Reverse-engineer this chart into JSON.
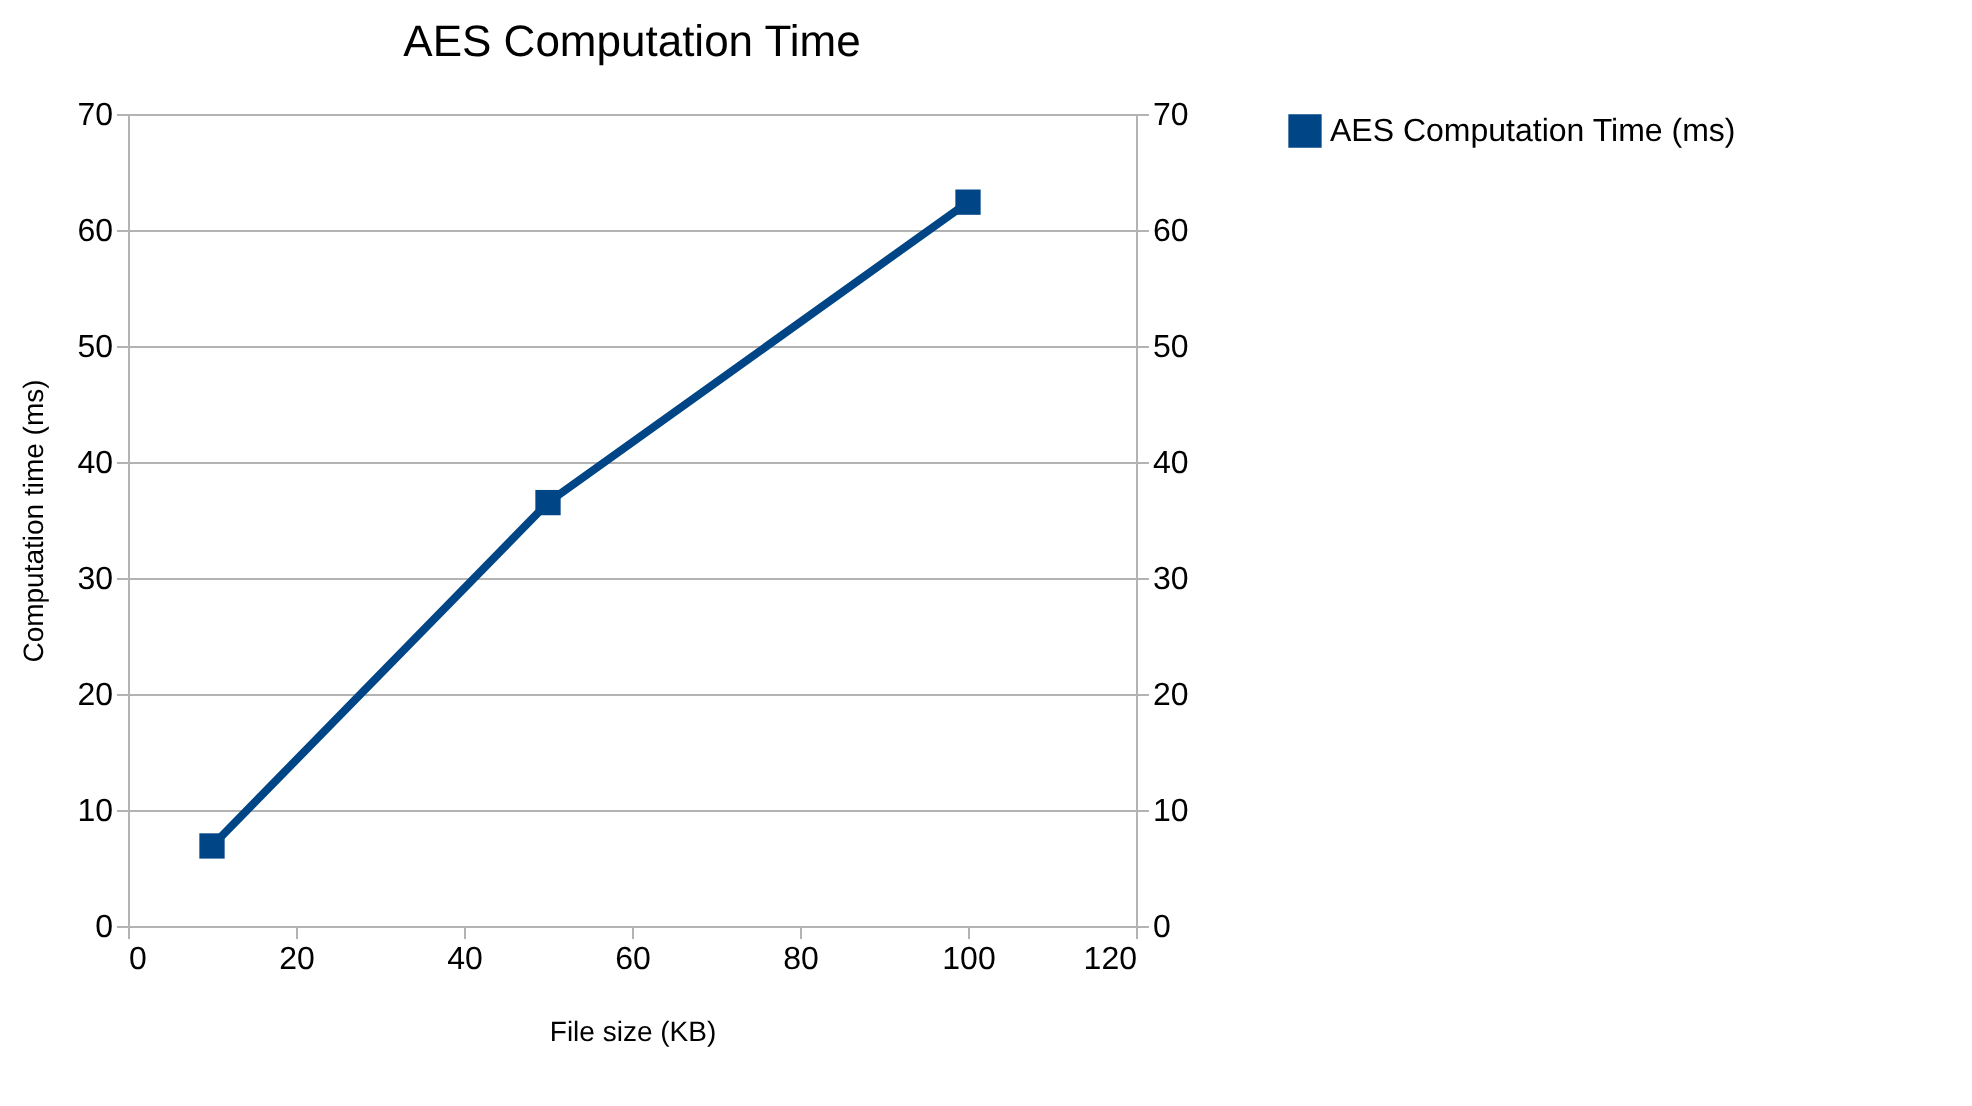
{
  "chart_data": {
    "type": "line",
    "title": "AES Computation Time",
    "xlabel": "File size (KB)",
    "ylabel": "Computation time (ms)",
    "x": [
      10,
      50,
      100
    ],
    "series": [
      {
        "name": "AES Computation Time (ms)",
        "color": "#004586",
        "values": [
          6.9,
          36.5,
          62.4
        ]
      }
    ],
    "xlim": [
      0,
      120
    ],
    "xticks": [
      0,
      20,
      40,
      60,
      80,
      100,
      120
    ],
    "ylim": [
      0,
      70
    ],
    "yticks": [
      0,
      10,
      20,
      30,
      40,
      50,
      60,
      70
    ],
    "y2lim": [
      0,
      70
    ],
    "y2ticks": [
      0,
      10,
      20,
      30,
      40,
      50,
      60,
      70
    ],
    "grid": "y",
    "legend": "right",
    "marker": "square",
    "line_style": "solid"
  }
}
